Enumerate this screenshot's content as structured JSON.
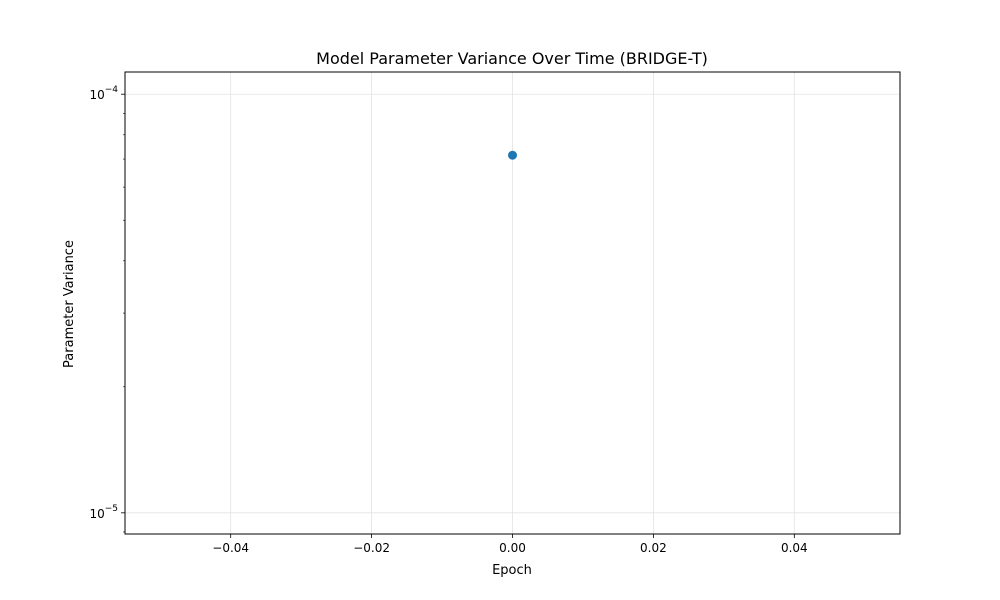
{
  "chart_data": {
    "type": "scatter",
    "title": "Model Parameter Variance Over Time (BRIDGE-T)",
    "xlabel": "Epoch",
    "ylabel": "Parameter Variance",
    "x_scale": "linear",
    "y_scale": "log",
    "xlim": [
      -0.055,
      0.055
    ],
    "ylim": [
      8.9e-06,
      0.000113
    ],
    "grid": true,
    "x_ticks": [
      {
        "value": -0.04,
        "label": "−0.04"
      },
      {
        "value": -0.02,
        "label": "−0.02"
      },
      {
        "value": 0.0,
        "label": "0.00"
      },
      {
        "value": 0.02,
        "label": "0.02"
      },
      {
        "value": 0.04,
        "label": "0.04"
      }
    ],
    "y_ticks": [
      {
        "value": 1e-05,
        "base": "10",
        "exp": "−5"
      },
      {
        "value": 0.0001,
        "base": "10",
        "exp": "−4"
      }
    ],
    "series": [
      {
        "color": "#1f77b4",
        "x": [
          0
        ],
        "y": [
          7.15e-05
        ]
      }
    ]
  }
}
